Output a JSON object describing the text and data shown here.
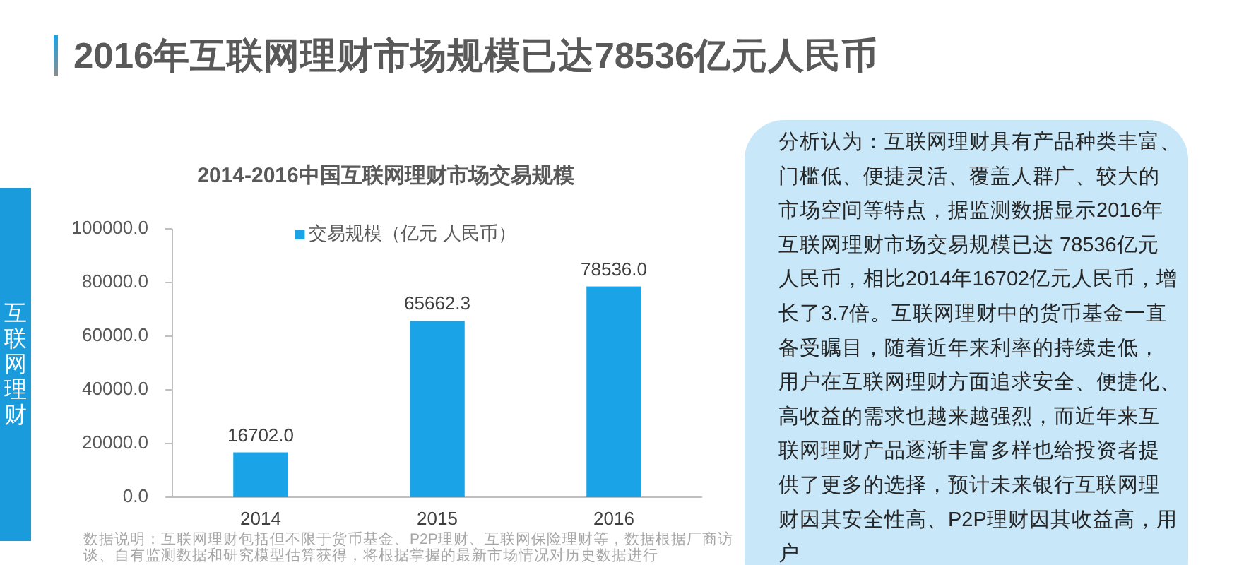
{
  "chart_data": {
    "type": "bar",
    "title": "2016年互联网理财市场规模已达78536亿元人民币",
    "subtitle": "2014-2016中国互联网理财市场交易规模",
    "categories": [
      "2014",
      "2015",
      "2016"
    ],
    "series": [
      {
        "name": "交易规模（亿元 人民币）",
        "color": "#1aa3e6",
        "values": [
          16702.0,
          65662.3,
          78536.0
        ],
        "value_labels": [
          "16702.0",
          "65662.3",
          "78536.0"
        ]
      }
    ],
    "ylim": [
      0,
      100000
    ],
    "yticks": [
      {
        "value": 0,
        "label": "0.0"
      },
      {
        "value": 20000,
        "label": "20000.0"
      },
      {
        "value": 40000,
        "label": "40000.0"
      },
      {
        "value": 60000,
        "label": "60000.0"
      },
      {
        "value": 80000,
        "label": "80000.0"
      },
      {
        "value": 100000,
        "label": "100000.0"
      }
    ],
    "legend": "top",
    "annotations": [
      "互联网理财",
      "分析认为：互联网理财具有产品种类丰富、门槛低、便捷灵活、覆盖人群广、较大的市场空间等特点，据监测数据显示2016年互联网理财市场交易规模已达 78536亿元人民币，相比2014年16702亿元人民币，增长了3.7倍。互联网理财中的货币基金一直备受瞩目，随着近年来利率的持续走低，用户在互联网理财方面追求安全、便捷化、高收益的需求也越来越强烈，而近年来互联网理财产品逐渐丰富多样也给投资者提供了更多的选择，预计未来银行互联网理财因其安全性高、P2P理财因其收益高，用户",
      "数据说明：互联网理财包括但不限于货币基金、P2P理财、互联网保险理财等，数据根据厂商访谈、自有监测数据和研究模型估算获得，将根据掌握的最新市场情况对历史数据进行"
    ]
  }
}
